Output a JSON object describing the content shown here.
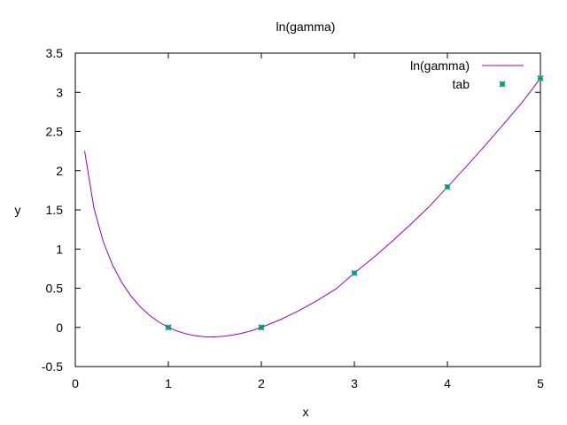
{
  "chart_data": {
    "type": "line",
    "title": "ln(gamma)",
    "xlabel": "x",
    "ylabel": "y",
    "xlim": [
      0,
      5
    ],
    "ylim": [
      -0.5,
      3.5
    ],
    "xticks": [
      0,
      1,
      2,
      3,
      4,
      5
    ],
    "xtick_labels": [
      "0",
      "1",
      "2",
      "3",
      "4",
      "5"
    ],
    "yticks": [
      -0.5,
      0,
      0.5,
      1,
      1.5,
      2,
      2.5,
      3,
      3.5
    ],
    "ytick_labels": [
      "-0.5",
      "0",
      "0.5",
      "1",
      "1.5",
      "2",
      "2.5",
      "3",
      "3.5"
    ],
    "grid": false,
    "legend_position": "top-right",
    "series": [
      {
        "name": "ln(gamma)",
        "style": "line",
        "color": "#9400d3",
        "x": [
          0.1,
          0.2,
          0.3,
          0.4,
          0.5,
          0.6,
          0.7,
          0.8,
          0.9,
          1.0,
          1.1,
          1.2,
          1.3,
          1.4,
          1.5,
          1.6,
          1.7,
          1.8,
          1.9,
          2.0,
          2.2,
          2.4,
          2.6,
          2.8,
          3.0,
          3.2,
          3.4,
          3.6,
          3.8,
          4.0,
          4.2,
          4.4,
          4.6,
          4.8,
          5.0
        ],
        "y": [
          2.2527,
          1.5241,
          1.0958,
          0.7966,
          0.5724,
          0.3982,
          0.2608,
          0.1521,
          0.0663,
          0.0,
          -0.0498,
          -0.0854,
          -0.1082,
          -0.1196,
          -0.1208,
          -0.1126,
          -0.0961,
          -0.0719,
          -0.0409,
          0.0,
          0.0962,
          0.2112,
          0.3427,
          0.489,
          0.6931,
          0.8854,
          1.0921,
          1.3097,
          1.5364,
          1.7918,
          2.0486,
          2.3142,
          2.5883,
          2.8665,
          3.1781
        ]
      },
      {
        "name": "tab",
        "style": "points",
        "color": "#009e73",
        "x": [
          1,
          2,
          3,
          4,
          5
        ],
        "y": [
          0,
          0,
          0.6931,
          1.7918,
          3.1781
        ]
      }
    ]
  }
}
